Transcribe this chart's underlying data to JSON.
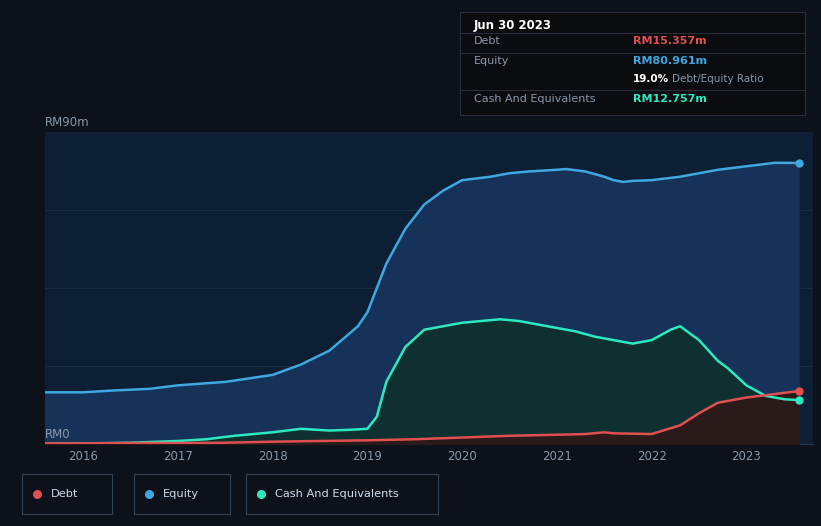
{
  "bg_color": "#0c111a",
  "plot_bg_color": "#0d1f35",
  "chart_bg_top": "#080e18",
  "title_box": {
    "date": "Jun 30 2023",
    "debt_label": "Debt",
    "debt_value": "RM15.357m",
    "equity_label": "Equity",
    "equity_value": "RM80.961m",
    "ratio_bold": "19.0%",
    "ratio_text": "Debt/Equity Ratio",
    "cash_label": "Cash And Equivalents",
    "cash_value": "RM12.757m"
  },
  "y_label_top": "RM90m",
  "y_label_bottom": "RM0",
  "x_ticks": [
    "2016",
    "2017",
    "2018",
    "2019",
    "2020",
    "2021",
    "2022",
    "2023"
  ],
  "x_tick_vals": [
    2016,
    2017,
    2018,
    2019,
    2020,
    2021,
    2022,
    2023
  ],
  "legend": [
    {
      "label": "Debt",
      "color": "#e05050"
    },
    {
      "label": "Equity",
      "color": "#3fa8e0"
    },
    {
      "label": "Cash And Equivalents",
      "color": "#2de8c0"
    }
  ],
  "equity_color": "#3fa8e0",
  "equity_fill_color": "#163258",
  "debt_color": "#e05050",
  "debt_fill_color": "#2a1a1a",
  "cash_color": "#2de8c0",
  "cash_fill_color": "#0e3030",
  "equity_x": [
    2015.6,
    2016.0,
    2016.3,
    2016.7,
    2017.0,
    2017.5,
    2018.0,
    2018.3,
    2018.6,
    2018.9,
    2019.0,
    2019.1,
    2019.2,
    2019.4,
    2019.6,
    2019.8,
    2020.0,
    2020.3,
    2020.5,
    2020.7,
    2021.0,
    2021.1,
    2021.3,
    2021.5,
    2021.6,
    2021.7,
    2021.8,
    2022.0,
    2022.3,
    2022.5,
    2022.7,
    2023.0,
    2023.3,
    2023.55
  ],
  "equity_y": [
    15,
    15,
    15.5,
    16,
    17,
    18,
    20,
    23,
    27,
    34,
    38,
    45,
    52,
    62,
    69,
    73,
    76,
    77,
    78,
    78.5,
    79,
    79.2,
    78.5,
    77,
    76,
    75.5,
    75.8,
    76,
    77,
    78,
    79,
    80,
    81,
    80.961
  ],
  "debt_x": [
    2015.6,
    2016.0,
    2016.5,
    2017.0,
    2017.5,
    2018.0,
    2018.5,
    2019.0,
    2019.5,
    2020.0,
    2020.5,
    2021.0,
    2021.3,
    2021.5,
    2021.6,
    2022.0,
    2022.3,
    2022.5,
    2022.7,
    2023.0,
    2023.3,
    2023.55
  ],
  "debt_y": [
    0.3,
    0.3,
    0.4,
    0.4,
    0.5,
    0.8,
    1.0,
    1.2,
    1.5,
    2.0,
    2.5,
    2.8,
    3.0,
    3.5,
    3.2,
    3.0,
    5.5,
    9,
    12,
    13.5,
    14.5,
    15.357
  ],
  "cash_x": [
    2015.6,
    2016.0,
    2016.5,
    2017.0,
    2017.3,
    2017.6,
    2018.0,
    2018.3,
    2018.6,
    2018.8,
    2019.0,
    2019.1,
    2019.2,
    2019.4,
    2019.6,
    2019.8,
    2020.0,
    2020.2,
    2020.4,
    2020.6,
    2020.8,
    2021.0,
    2021.1,
    2021.2,
    2021.4,
    2021.6,
    2021.7,
    2021.8,
    2022.0,
    2022.1,
    2022.2,
    2022.3,
    2022.5,
    2022.7,
    2022.8,
    2023.0,
    2023.2,
    2023.4,
    2023.55
  ],
  "cash_y": [
    0.2,
    0.3,
    0.5,
    1.0,
    1.5,
    2.5,
    3.5,
    4.5,
    4.0,
    4.2,
    4.5,
    8,
    18,
    28,
    33,
    34,
    35,
    35.5,
    36,
    35.5,
    34.5,
    33.5,
    33,
    32.5,
    31,
    30,
    29.5,
    29,
    30,
    31.5,
    33,
    34,
    30,
    24,
    22,
    17,
    14,
    13,
    12.757
  ],
  "ylim": [
    0,
    90
  ],
  "xlim": [
    2015.6,
    2023.7
  ]
}
